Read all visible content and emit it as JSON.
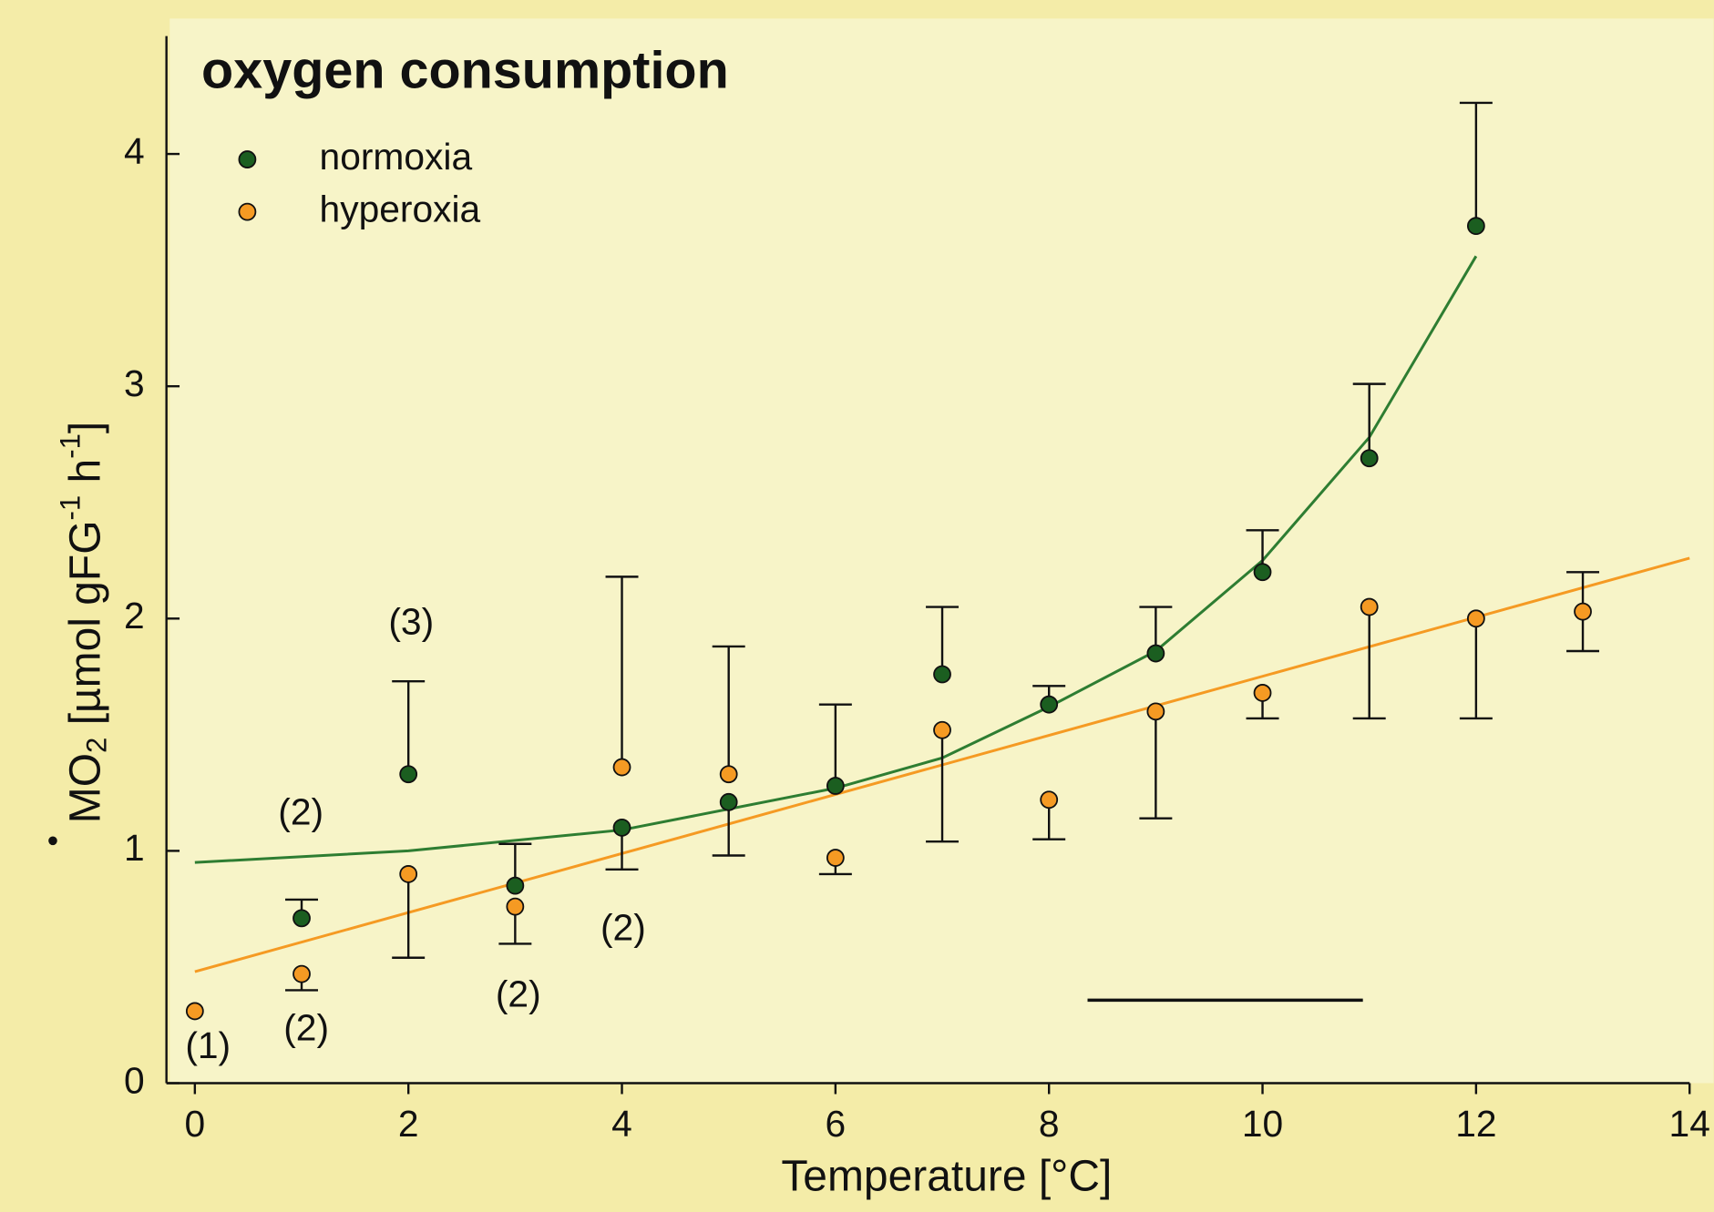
{
  "chart_data": {
    "type": "scatter",
    "title": "oxygen consumption",
    "x_label": "Temperature [°C]",
    "y_label": [
      "MO",
      "2",
      " [µmol gFG",
      "-1",
      " h",
      "-1",
      "]"
    ],
    "xlim": [
      0,
      14
    ],
    "xticks": [
      0,
      2,
      4,
      6,
      8,
      10,
      12,
      14
    ],
    "ylim": [
      0,
      4.4
    ],
    "yticks": [
      0,
      1,
      2,
      3,
      4
    ],
    "series": [
      {
        "name": "normoxia",
        "color": "#1b5e20",
        "x": [
          1,
          2,
          3,
          4,
          5,
          6,
          7,
          8,
          9,
          10,
          11,
          12
        ],
        "values": [
          0.71,
          1.33,
          0.85,
          1.1,
          1.21,
          1.28,
          1.76,
          1.63,
          1.85,
          2.2,
          2.69,
          3.69
        ],
        "error_high": [
          0.79,
          1.73,
          1.03,
          null,
          null,
          1.63,
          2.05,
          1.71,
          2.05,
          2.38,
          3.01,
          4.22
        ],
        "error_low": [
          null,
          null,
          null,
          0.92,
          0.98,
          null,
          null,
          null,
          null,
          null,
          null,
          null
        ]
      },
      {
        "name": "hyperoxia",
        "color": "#f59a23",
        "x": [
          0,
          1,
          2,
          3,
          4,
          5,
          6,
          7,
          8,
          9,
          10,
          11,
          12,
          13
        ],
        "values": [
          0.31,
          0.47,
          0.9,
          0.76,
          1.36,
          1.33,
          0.97,
          1.52,
          1.22,
          1.6,
          1.68,
          2.05,
          2.0,
          2.03
        ],
        "error_high": [
          null,
          null,
          null,
          null,
          2.18,
          1.88,
          null,
          null,
          null,
          null,
          null,
          null,
          null,
          2.2
        ],
        "error_low": [
          null,
          0.4,
          0.54,
          0.6,
          null,
          null,
          0.9,
          1.04,
          1.05,
          1.14,
          1.57,
          1.57,
          1.57,
          1.86
        ]
      }
    ],
    "fits": [
      {
        "color": "#2e7d32",
        "x": [
          0,
          2,
          4,
          6,
          7,
          8,
          9,
          10,
          11,
          12
        ],
        "values": [
          0.95,
          1.0,
          1.09,
          1.27,
          1.4,
          1.62,
          1.86,
          2.25,
          2.78,
          3.56
        ]
      },
      {
        "color": "#f59a23",
        "x": [
          0,
          14
        ],
        "values": [
          0.48,
          2.26
        ]
      }
    ],
    "annotations": [
      "(1)",
      "(2)",
      "(2)",
      "(3)",
      "(2)",
      "(2)"
    ]
  }
}
